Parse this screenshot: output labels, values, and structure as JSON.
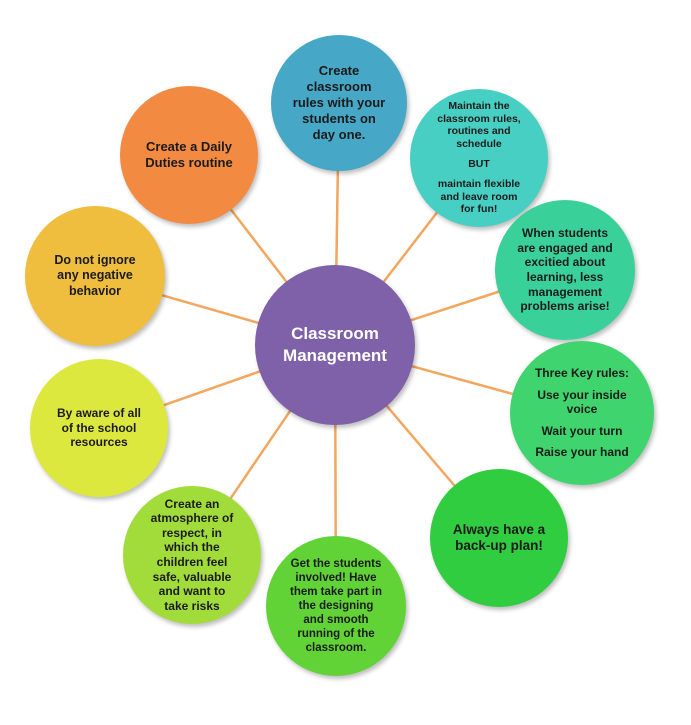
{
  "diagram": {
    "center": {
      "lines": [
        "Classroom",
        "Management"
      ],
      "color": "#7e61a8"
    },
    "spoke_color": "#f2a65e",
    "nodes": [
      {
        "id": "create-classroom-rules",
        "lines": [
          "Create",
          "classroom",
          "rules with your",
          "students on",
          "day one."
        ],
        "color": "#46a7c7"
      },
      {
        "id": "maintain-rules",
        "lines": [
          "Maintain the",
          "classroom rules,",
          "routines and",
          "schedule",
          "",
          "BUT",
          "",
          "maintain flexible",
          "and leave room",
          "for fun!"
        ],
        "color": "#48cfc3"
      },
      {
        "id": "students-engaged",
        "lines": [
          "When students",
          "are engaged and",
          "excitied about",
          "learning, less",
          "management",
          "problems arise!"
        ],
        "color": "#3ad09a"
      },
      {
        "id": "three-key-rules",
        "lines": [
          "Three Key rules:",
          "",
          "Use your inside",
          "voice",
          "",
          "Wait your turn",
          "",
          "Raise your hand"
        ],
        "color": "#3fd46e"
      },
      {
        "id": "back-up-plan",
        "lines": [
          "Always have a",
          "back-up plan!"
        ],
        "color": "#30cd40"
      },
      {
        "id": "get-students-involved",
        "lines": [
          "Get the students",
          "involved! Have",
          "them take part in",
          "the designing",
          "and smooth",
          "running of the",
          "classroom."
        ],
        "color": "#62d336"
      },
      {
        "id": "atmosphere-of-respect",
        "lines": [
          "Create an",
          "atmosphere of",
          "respect, in",
          "which the",
          "children feel",
          "safe, valuable",
          "and want to",
          "take risks"
        ],
        "color": "#a2dc3a"
      },
      {
        "id": "school-resources",
        "lines": [
          "By aware of all",
          "of the school",
          "resources"
        ],
        "color": "#dde83f"
      },
      {
        "id": "negative-behavior",
        "lines": [
          "Do not ignore",
          "any negative",
          "behavior"
        ],
        "color": "#f0be3e"
      },
      {
        "id": "daily-duties",
        "lines": [
          "Create a Daily",
          "Duties routine"
        ],
        "color": "#f28a42"
      }
    ]
  }
}
